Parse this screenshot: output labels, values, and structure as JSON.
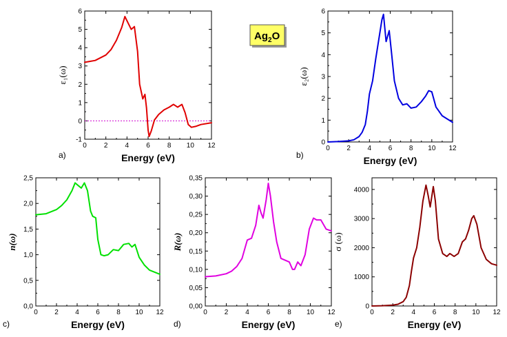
{
  "compound": {
    "main": "Ag",
    "subscript": "2",
    "tail": "O"
  },
  "chart_data": [
    {
      "id": "a",
      "panel_label": "a)",
      "type": "line",
      "color": "#e00000",
      "ylabel": "ε₁(ω)",
      "xlabel": "Energy (eV)",
      "xlim": [
        0,
        12
      ],
      "ylim": [
        -1,
        6
      ],
      "xticks": [
        "0",
        "2",
        "4",
        "6",
        "8",
        "10",
        "12"
      ],
      "yticks": [
        "-1",
        "0",
        "1",
        "2",
        "3",
        "4",
        "5",
        "6"
      ],
      "xtick_values": [
        0,
        2,
        4,
        6,
        8,
        10,
        12
      ],
      "ytick_values": [
        -1,
        0,
        1,
        2,
        3,
        4,
        5,
        6
      ],
      "zero_line": {
        "y": 0,
        "color": "#d000d0"
      },
      "x": [
        0,
        1,
        2,
        2.5,
        3,
        3.5,
        3.8,
        4.1,
        4.4,
        4.7,
        5.0,
        5.2,
        5.5,
        5.7,
        5.85,
        6.0,
        6.1,
        6.3,
        6.6,
        7.0,
        7.5,
        8.0,
        8.4,
        8.8,
        9.2,
        9.5,
        9.8,
        10.1,
        10.5,
        11,
        12
      ],
      "y": [
        3.2,
        3.3,
        3.6,
        3.9,
        4.4,
        5.1,
        5.7,
        5.35,
        5.0,
        5.15,
        3.8,
        2.0,
        1.2,
        1.45,
        0.7,
        -0.5,
        -0.85,
        -0.55,
        0.05,
        0.35,
        0.6,
        0.75,
        0.9,
        0.75,
        0.9,
        0.45,
        -0.2,
        -0.35,
        -0.3,
        -0.2,
        -0.1
      ]
    },
    {
      "id": "b",
      "panel_label": "b)",
      "type": "line",
      "color": "#0000e0",
      "ylabel": "ε₂(ω)",
      "xlabel": "Energy (eV)",
      "xlim": [
        0,
        12
      ],
      "ylim": [
        0,
        6
      ],
      "xticks": [
        "0",
        "2",
        "4",
        "6",
        "8",
        "10",
        "12"
      ],
      "yticks": [
        "0",
        "1",
        "2",
        "3",
        "4",
        "5",
        "6"
      ],
      "xtick_values": [
        0,
        2,
        4,
        6,
        8,
        10,
        12
      ],
      "ytick_values": [
        0,
        1,
        2,
        3,
        4,
        5,
        6
      ],
      "x": [
        0,
        1,
        2,
        2.5,
        3,
        3.3,
        3.6,
        3.8,
        4.0,
        4.3,
        4.6,
        4.9,
        5.2,
        5.35,
        5.6,
        5.9,
        6.1,
        6.4,
        6.8,
        7.2,
        7.6,
        8.0,
        8.5,
        9.0,
        9.4,
        9.7,
        10.0,
        10.4,
        11,
        12
      ],
      "y": [
        0,
        0.02,
        0.05,
        0.1,
        0.25,
        0.45,
        0.8,
        1.4,
        2.2,
        2.8,
        3.8,
        4.7,
        5.6,
        5.85,
        4.6,
        5.1,
        4.2,
        2.8,
        2.0,
        1.7,
        1.75,
        1.55,
        1.6,
        1.85,
        2.1,
        2.35,
        2.3,
        1.6,
        1.2,
        0.9
      ]
    },
    {
      "id": "c",
      "panel_label": "c)",
      "type": "line",
      "color": "#00e000",
      "ylabel": "n(ω)",
      "xlabel": "Energy (eV)",
      "xlim": [
        0,
        12
      ],
      "ylim": [
        0.0,
        2.5
      ],
      "xticks": [
        "0",
        "2",
        "4",
        "6",
        "8",
        "10",
        "12"
      ],
      "yticks": [
        "0,0",
        "0,5",
        "1,0",
        "1,5",
        "2,0",
        "2,5"
      ],
      "xtick_values": [
        0,
        2,
        4,
        6,
        8,
        10,
        12
      ],
      "ytick_values": [
        0.0,
        0.5,
        1.0,
        1.5,
        2.0,
        2.5
      ],
      "x": [
        0,
        1,
        2,
        2.5,
        3,
        3.5,
        3.8,
        4.1,
        4.4,
        4.7,
        5.0,
        5.3,
        5.5,
        5.8,
        6.0,
        6.3,
        6.6,
        7.0,
        7.5,
        8.0,
        8.5,
        9.0,
        9.3,
        9.6,
        10.0,
        10.5,
        11,
        12
      ],
      "y": [
        1.78,
        1.8,
        1.88,
        1.96,
        2.07,
        2.25,
        2.4,
        2.35,
        2.3,
        2.4,
        2.25,
        1.85,
        1.75,
        1.72,
        1.3,
        1.0,
        0.98,
        1.0,
        1.1,
        1.08,
        1.2,
        1.22,
        1.15,
        1.2,
        0.95,
        0.8,
        0.7,
        0.62
      ]
    },
    {
      "id": "d",
      "panel_label": "d)",
      "type": "line",
      "color": "#e000e0",
      "ylabel": "R(ω)",
      "xlabel": "Energy (eV)",
      "xlim": [
        0,
        12
      ],
      "ylim": [
        0.0,
        0.35
      ],
      "xticks": [
        "0",
        "2",
        "4",
        "6",
        "8",
        "10",
        "12"
      ],
      "yticks": [
        "0,00",
        "0,05",
        "0,10",
        "0,15",
        "0,20",
        "0,25",
        "0,30",
        "0,35"
      ],
      "xtick_values": [
        0,
        2,
        4,
        6,
        8,
        10,
        12
      ],
      "ytick_values": [
        0.0,
        0.05,
        0.1,
        0.15,
        0.2,
        0.25,
        0.3,
        0.35
      ],
      "x": [
        0,
        1,
        2,
        2.5,
        3,
        3.5,
        3.8,
        4.0,
        4.4,
        4.8,
        5.1,
        5.3,
        5.5,
        5.8,
        6.0,
        6.2,
        6.5,
        6.8,
        7.2,
        7.6,
        8.0,
        8.3,
        8.5,
        8.8,
        9.1,
        9.5,
        9.9,
        10.3,
        10.6,
        11,
        11.5,
        12
      ],
      "y": [
        0.08,
        0.082,
        0.088,
        0.095,
        0.108,
        0.13,
        0.16,
        0.18,
        0.185,
        0.22,
        0.275,
        0.255,
        0.24,
        0.29,
        0.335,
        0.3,
        0.23,
        0.175,
        0.13,
        0.125,
        0.12,
        0.1,
        0.1,
        0.12,
        0.11,
        0.14,
        0.21,
        0.24,
        0.235,
        0.235,
        0.21,
        0.205
      ]
    },
    {
      "id": "e",
      "panel_label": "e)",
      "type": "line",
      "color": "#8b0000",
      "ylabel": "σ (ω)",
      "xlabel": "Energy (eV)",
      "xlim": [
        0,
        12
      ],
      "ylim": [
        0,
        4400
      ],
      "xticks": [
        "0",
        "2",
        "4",
        "6",
        "8",
        "10",
        "12"
      ],
      "yticks": [
        "0",
        "1000",
        "2000",
        "3000",
        "4000"
      ],
      "xtick_values": [
        0,
        2,
        4,
        6,
        8,
        10,
        12
      ],
      "ytick_values": [
        0,
        1000,
        2000,
        3000,
        4000
      ],
      "x": [
        0,
        1,
        2,
        2.5,
        3,
        3.3,
        3.6,
        3.8,
        4.0,
        4.3,
        4.6,
        4.9,
        5.2,
        5.4,
        5.6,
        5.9,
        6.1,
        6.4,
        6.8,
        7.2,
        7.5,
        7.9,
        8.3,
        8.7,
        9.0,
        9.3,
        9.6,
        9.8,
        10.1,
        10.5,
        11,
        11.5,
        12
      ],
      "y": [
        0,
        10,
        30,
        60,
        150,
        300,
        700,
        1200,
        1650,
        2000,
        2700,
        3600,
        4150,
        3800,
        3400,
        4100,
        3600,
        2300,
        1800,
        1700,
        1800,
        1700,
        1800,
        2200,
        2300,
        2600,
        3000,
        3100,
        2800,
        2000,
        1600,
        1450,
        1400
      ]
    }
  ]
}
